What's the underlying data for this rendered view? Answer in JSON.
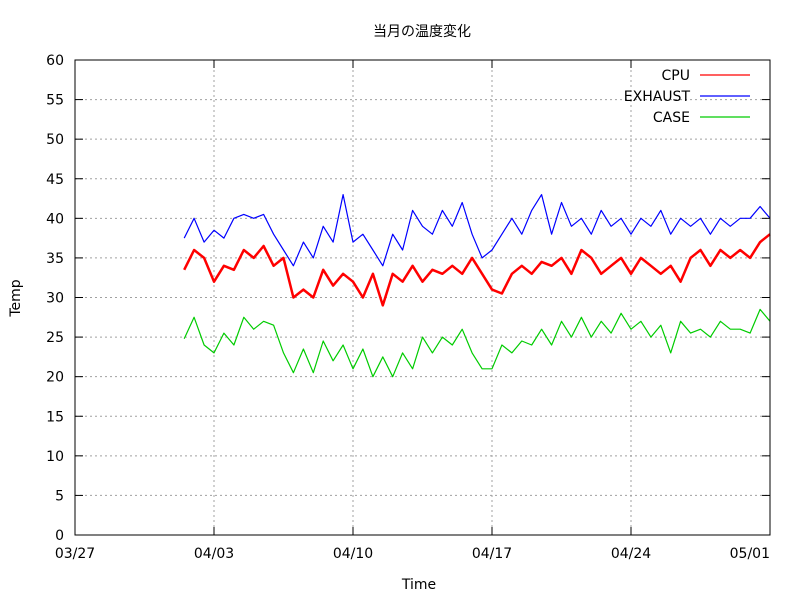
{
  "chart_data": {
    "type": "line",
    "title": "当月の温度変化",
    "xlabel": "Time",
    "ylabel": "Temp",
    "ylim": [
      0,
      60
    ],
    "yticks": [
      0,
      5,
      10,
      15,
      20,
      25,
      30,
      35,
      40,
      45,
      50,
      55,
      60
    ],
    "xlim": [
      "2025-03-27",
      "2025-05-01"
    ],
    "xticks": [
      {
        "date": "2025-03-27",
        "label": "03/27"
      },
      {
        "date": "2025-04-03",
        "label": "04/03"
      },
      {
        "date": "2025-04-10",
        "label": "04/10"
      },
      {
        "date": "2025-04-17",
        "label": "04/17"
      },
      {
        "date": "2025-04-24",
        "label": "04/24"
      },
      {
        "date": "2025-05-01",
        "label": "05/01"
      }
    ],
    "grid": true,
    "legend_position": "top-right",
    "series": [
      {
        "name": "CPU",
        "color": "#ff0000",
        "x": [
          "2025-04-01 12:00",
          "2025-04-02 00:00",
          "2025-04-02 12:00",
          "2025-04-03 00:00",
          "2025-04-03 12:00",
          "2025-04-04 00:00",
          "2025-04-04 12:00",
          "2025-04-05 00:00",
          "2025-04-05 12:00",
          "2025-04-06 00:00",
          "2025-04-06 12:00",
          "2025-04-07 00:00",
          "2025-04-07 12:00",
          "2025-04-08 00:00",
          "2025-04-08 12:00",
          "2025-04-09 00:00",
          "2025-04-09 12:00",
          "2025-04-10 00:00",
          "2025-04-10 12:00",
          "2025-04-11 00:00",
          "2025-04-11 12:00",
          "2025-04-12 00:00",
          "2025-04-12 12:00",
          "2025-04-13 00:00",
          "2025-04-13 12:00",
          "2025-04-14 00:00",
          "2025-04-14 12:00",
          "2025-04-15 00:00",
          "2025-04-15 12:00",
          "2025-04-16 00:00",
          "2025-04-16 12:00",
          "2025-04-17 00:00",
          "2025-04-17 12:00",
          "2025-04-18 00:00",
          "2025-04-18 12:00",
          "2025-04-19 00:00",
          "2025-04-19 12:00",
          "2025-04-20 00:00",
          "2025-04-20 12:00",
          "2025-04-21 00:00",
          "2025-04-21 12:00",
          "2025-04-22 00:00",
          "2025-04-22 12:00",
          "2025-04-23 00:00",
          "2025-04-23 12:00",
          "2025-04-24 00:00",
          "2025-04-24 12:00",
          "2025-04-25 00:00",
          "2025-04-25 12:00",
          "2025-04-26 00:00",
          "2025-04-26 12:00",
          "2025-04-27 00:00",
          "2025-04-27 12:00",
          "2025-04-28 00:00",
          "2025-04-28 12:00",
          "2025-04-29 00:00",
          "2025-04-29 12:00",
          "2025-04-30 00:00",
          "2025-04-30 12:00",
          "2025-05-01 00:00"
        ],
        "values": [
          33.5,
          36,
          35,
          32,
          34,
          33.5,
          36,
          35,
          36.5,
          34,
          35,
          30,
          31,
          30,
          33.5,
          31.5,
          33,
          32,
          30,
          33,
          29,
          33,
          32,
          34,
          32,
          33.5,
          33,
          34,
          33,
          35,
          33,
          31,
          30.5,
          33,
          34,
          33,
          34.5,
          34,
          35,
          33,
          36,
          35,
          33,
          34,
          35,
          33,
          35,
          34,
          33,
          34,
          32,
          35,
          36,
          34,
          36,
          35,
          36,
          35,
          37,
          38
        ]
      },
      {
        "name": "EXHAUST",
        "color": "#0000ff",
        "x": [
          "2025-04-01 12:00",
          "2025-04-02 00:00",
          "2025-04-02 12:00",
          "2025-04-03 00:00",
          "2025-04-03 12:00",
          "2025-04-04 00:00",
          "2025-04-04 12:00",
          "2025-04-05 00:00",
          "2025-04-05 12:00",
          "2025-04-06 00:00",
          "2025-04-06 12:00",
          "2025-04-07 00:00",
          "2025-04-07 12:00",
          "2025-04-08 00:00",
          "2025-04-08 12:00",
          "2025-04-09 00:00",
          "2025-04-09 12:00",
          "2025-04-10 00:00",
          "2025-04-10 12:00",
          "2025-04-11 00:00",
          "2025-04-11 12:00",
          "2025-04-12 00:00",
          "2025-04-12 12:00",
          "2025-04-13 00:00",
          "2025-04-13 12:00",
          "2025-04-14 00:00",
          "2025-04-14 12:00",
          "2025-04-15 00:00",
          "2025-04-15 12:00",
          "2025-04-16 00:00",
          "2025-04-16 12:00",
          "2025-04-17 00:00",
          "2025-04-17 12:00",
          "2025-04-18 00:00",
          "2025-04-18 12:00",
          "2025-04-19 00:00",
          "2025-04-19 12:00",
          "2025-04-20 00:00",
          "2025-04-20 12:00",
          "2025-04-21 00:00",
          "2025-04-21 12:00",
          "2025-04-22 00:00",
          "2025-04-22 12:00",
          "2025-04-23 00:00",
          "2025-04-23 12:00",
          "2025-04-24 00:00",
          "2025-04-24 12:00",
          "2025-04-25 00:00",
          "2025-04-25 12:00",
          "2025-04-26 00:00",
          "2025-04-26 12:00",
          "2025-04-27 00:00",
          "2025-04-27 12:00",
          "2025-04-28 00:00",
          "2025-04-28 12:00",
          "2025-04-29 00:00",
          "2025-04-29 12:00",
          "2025-04-30 00:00",
          "2025-04-30 12:00",
          "2025-05-01 00:00"
        ],
        "values": [
          37.5,
          40,
          37,
          38.5,
          37.5,
          40,
          40.5,
          40,
          40.5,
          38,
          36,
          34,
          37,
          35,
          39,
          37,
          43,
          37,
          38,
          36,
          34,
          38,
          36,
          41,
          39,
          38,
          41,
          39,
          42,
          38,
          35,
          36,
          38,
          40,
          38,
          41,
          43,
          38,
          42,
          39,
          40,
          38,
          41,
          39,
          40,
          38,
          40,
          39,
          41,
          38,
          40,
          39,
          40,
          38,
          40,
          39,
          40,
          40,
          41.5,
          40
        ]
      },
      {
        "name": "CASE",
        "color": "#00cc00",
        "x": [
          "2025-04-01 12:00",
          "2025-04-02 00:00",
          "2025-04-02 12:00",
          "2025-04-03 00:00",
          "2025-04-03 12:00",
          "2025-04-04 00:00",
          "2025-04-04 12:00",
          "2025-04-05 00:00",
          "2025-04-05 12:00",
          "2025-04-06 00:00",
          "2025-04-06 12:00",
          "2025-04-07 00:00",
          "2025-04-07 12:00",
          "2025-04-08 00:00",
          "2025-04-08 12:00",
          "2025-04-09 00:00",
          "2025-04-09 12:00",
          "2025-04-10 00:00",
          "2025-04-10 12:00",
          "2025-04-11 00:00",
          "2025-04-11 12:00",
          "2025-04-12 00:00",
          "2025-04-12 12:00",
          "2025-04-13 00:00",
          "2025-04-13 12:00",
          "2025-04-14 00:00",
          "2025-04-14 12:00",
          "2025-04-15 00:00",
          "2025-04-15 12:00",
          "2025-04-16 00:00",
          "2025-04-16 12:00",
          "2025-04-17 00:00",
          "2025-04-17 12:00",
          "2025-04-18 00:00",
          "2025-04-18 12:00",
          "2025-04-19 00:00",
          "2025-04-19 12:00",
          "2025-04-20 00:00",
          "2025-04-20 12:00",
          "2025-04-21 00:00",
          "2025-04-21 12:00",
          "2025-04-22 00:00",
          "2025-04-22 12:00",
          "2025-04-23 00:00",
          "2025-04-23 12:00",
          "2025-04-24 00:00",
          "2025-04-24 12:00",
          "2025-04-25 00:00",
          "2025-04-25 12:00",
          "2025-04-26 00:00",
          "2025-04-26 12:00",
          "2025-04-27 00:00",
          "2025-04-27 12:00",
          "2025-04-28 00:00",
          "2025-04-28 12:00",
          "2025-04-29 00:00",
          "2025-04-29 12:00",
          "2025-04-30 00:00",
          "2025-04-30 12:00",
          "2025-05-01 00:00"
        ],
        "values": [
          24.8,
          27.5,
          24,
          23,
          25.5,
          24,
          27.5,
          26,
          27,
          26.5,
          23,
          20.5,
          23.5,
          20.5,
          24.5,
          22,
          24,
          21,
          23.5,
          20,
          22.5,
          20,
          23,
          21,
          25,
          23,
          25,
          24,
          26,
          23,
          21,
          21,
          24,
          23,
          24.5,
          24,
          26,
          24,
          27,
          25,
          27.5,
          25,
          27,
          25.5,
          28,
          26,
          27,
          25,
          26.5,
          23,
          27,
          25.5,
          26,
          25,
          27,
          26,
          26,
          25.5,
          28.5,
          27
        ]
      }
    ]
  }
}
